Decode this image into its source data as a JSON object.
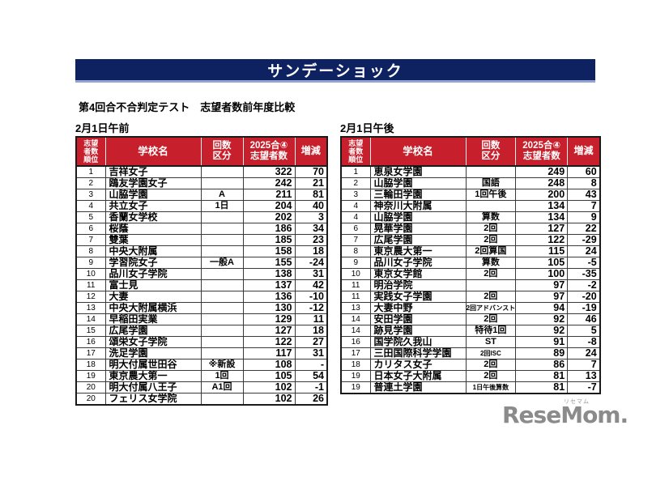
{
  "banner": {
    "title": "サンデーショック"
  },
  "subtitle": "第4回合不合判定テスト　志望者数前年度比較",
  "colors": {
    "banner_bg": "#0e2161",
    "banner_underline": "#93a5cf",
    "table_header_bg": "#c7202c",
    "table_header_text": "#ffffff",
    "logo_gray": "#8b8b8b"
  },
  "column_headers": [
    [
      "志望",
      "者数",
      "順位"
    ],
    [
      "学校名"
    ],
    [
      "回数",
      "区分"
    ],
    [
      "2025合④",
      "志望者数"
    ],
    [
      "増減"
    ]
  ],
  "tables": [
    {
      "label": "2月1日午前",
      "rows": [
        [
          "1",
          "吉祥女子",
          "",
          "322",
          "70"
        ],
        [
          "2",
          "鴎友学園女子",
          "",
          "242",
          "21"
        ],
        [
          "3",
          "山脇学園",
          "A",
          "211",
          "81"
        ],
        [
          "4",
          "共立女子",
          "1日",
          "204",
          "40"
        ],
        [
          "5",
          "香蘭女学校",
          "",
          "202",
          "3"
        ],
        [
          "6",
          "桜蔭",
          "",
          "186",
          "34"
        ],
        [
          "7",
          "雙葉",
          "",
          "185",
          "23"
        ],
        [
          "8",
          "中央大附属",
          "",
          "158",
          "18"
        ],
        [
          "9",
          "学習院女子",
          "一般A",
          "155",
          "-24"
        ],
        [
          "10",
          "品川女子学院",
          "",
          "138",
          "31"
        ],
        [
          "11",
          "富士見",
          "",
          "137",
          "42"
        ],
        [
          "12",
          "大妻",
          "",
          "136",
          "-10"
        ],
        [
          "13",
          "中央大附属横浜",
          "",
          "130",
          "-12"
        ],
        [
          "14",
          "早稲田実業",
          "",
          "129",
          "11"
        ],
        [
          "15",
          "広尾学園",
          "",
          "127",
          "18"
        ],
        [
          "16",
          "頌栄女子学院",
          "",
          "122",
          "27"
        ],
        [
          "17",
          "洗足学園",
          "",
          "117",
          "31"
        ],
        [
          "18",
          "明大付属世田谷",
          "※新設",
          "108",
          "-"
        ],
        [
          "19",
          "東京農大第一",
          "1回",
          "105",
          "54"
        ],
        [
          "20",
          "明大付属八王子",
          "A1回",
          "102",
          "-1"
        ],
        [
          "20",
          "フェリス女学院",
          "",
          "102",
          "26"
        ]
      ]
    },
    {
      "label": "2月1日午後",
      "rows": [
        [
          "1",
          "恵泉女学園",
          "",
          "249",
          "60"
        ],
        [
          "2",
          "山脇学園",
          "国語",
          "248",
          "8"
        ],
        [
          "3",
          "三輪田学園",
          "1回午後",
          "200",
          "43"
        ],
        [
          "4",
          "神奈川大附属",
          "",
          "134",
          "7"
        ],
        [
          "4",
          "山脇学園",
          "算数",
          "134",
          "9"
        ],
        [
          "6",
          "晃華学園",
          "2回",
          "127",
          "22"
        ],
        [
          "7",
          "広尾学園",
          "2回",
          "122",
          "-29"
        ],
        [
          "8",
          "東京農大第一",
          "2回算国",
          "115",
          "24"
        ],
        [
          "9",
          "品川女子学院",
          "算数",
          "105",
          "-5"
        ],
        [
          "10",
          "東京女学館",
          "2回",
          "100",
          "-35"
        ],
        [
          "11",
          "明治学院",
          "",
          "97",
          "-2"
        ],
        [
          "11",
          "実践女子学園",
          "2回",
          "97",
          "-20"
        ],
        [
          "13",
          "大妻中野",
          "2回アドバンスト",
          "94",
          "-19"
        ],
        [
          "14",
          "安田学園",
          "2回",
          "92",
          "46"
        ],
        [
          "14",
          "跡見学園",
          "特待1回",
          "92",
          "5"
        ],
        [
          "16",
          "国学院久我山",
          "ST",
          "91",
          "-8"
        ],
        [
          "17",
          "三田国際科学学園",
          "2回ISC",
          "89",
          "24"
        ],
        [
          "18",
          "カリタス女子",
          "2回",
          "86",
          "7"
        ],
        [
          "19",
          "日本女子大附属",
          "2回",
          "81",
          "13"
        ],
        [
          "19",
          "普連土学園",
          "1日午後算数",
          "81",
          "-7"
        ]
      ]
    }
  ],
  "logo": {
    "text": "ReseMom.",
    "ruby": "リセマム"
  }
}
